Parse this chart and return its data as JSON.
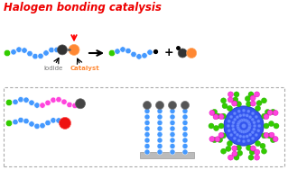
{
  "title": "Halogen bonding catalysis",
  "title_color": "#ee0000",
  "bg_color": "#ffffff",
  "blue": "#4499ff",
  "blue_light": "#88bbff",
  "green": "#33cc00",
  "orange": "#ff8833",
  "black_sphere": "#333333",
  "magenta": "#ff44dd",
  "red": "#ee1111",
  "gray_sphere": "#777777",
  "dot_color": "#555555",
  "label_gray": "#777777",
  "surf_gray": "#bbbbbb"
}
